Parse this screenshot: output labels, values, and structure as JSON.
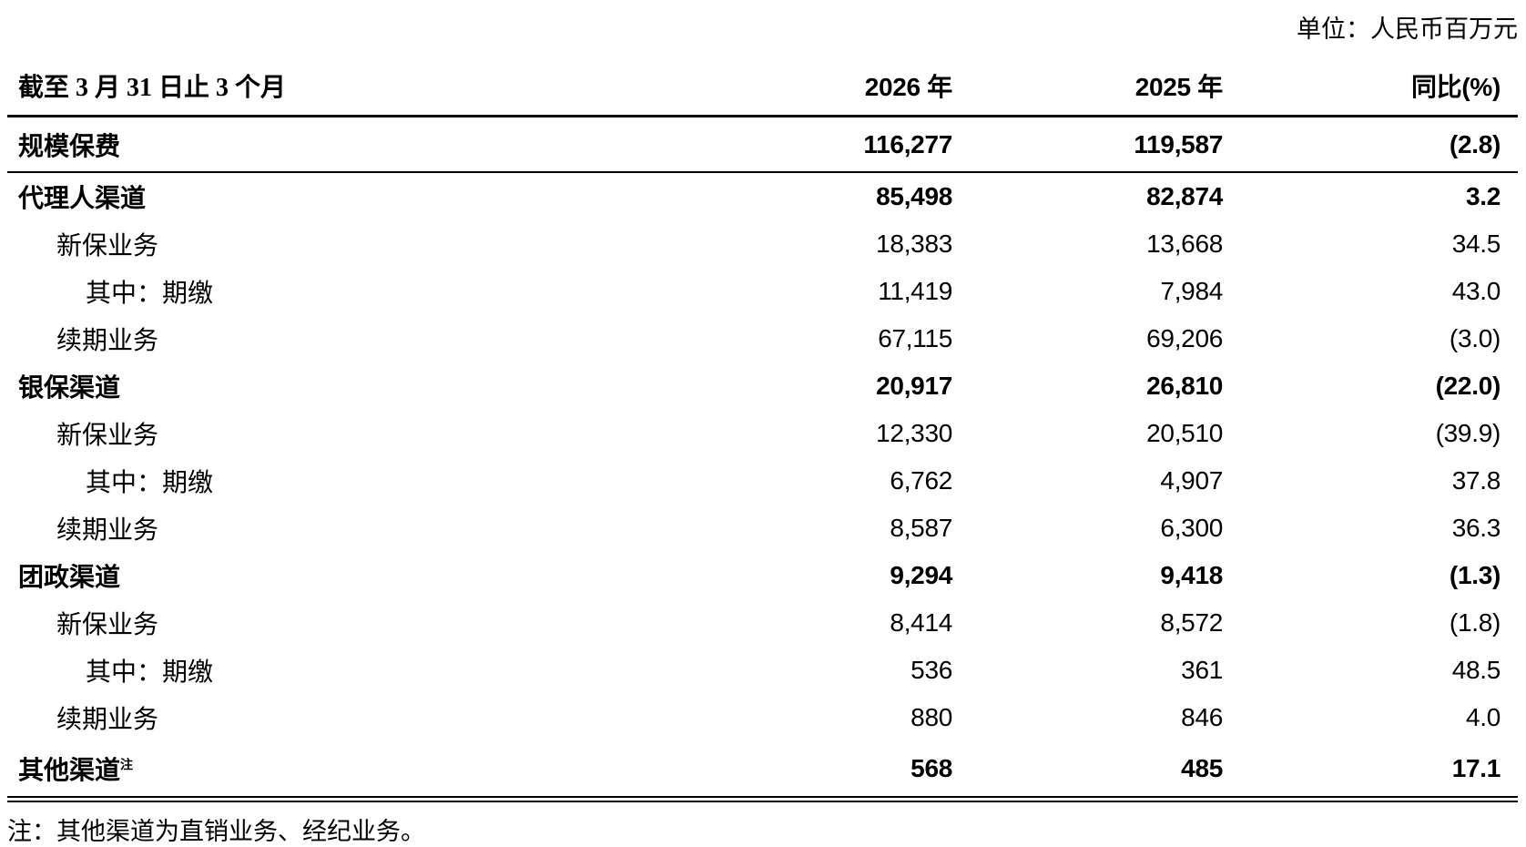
{
  "page": {
    "background": "#ffffff",
    "text_color": "#000000"
  },
  "unit_label": "单位：人民币百万元",
  "table": {
    "columns": {
      "period": "截至 3 月 31 日止 3 个月",
      "y2026": "2026 年",
      "y2025": "2025 年",
      "yoy": "同比(%)"
    },
    "rows": [
      {
        "label": "规模保费",
        "sup": "",
        "indent": 0,
        "bold": true,
        "y2026": "116,277",
        "y2025": "119,587",
        "yoy": "(2.8)"
      },
      {
        "label": "代理人渠道",
        "sup": "",
        "indent": 0,
        "bold": true,
        "y2026": "85,498",
        "y2025": "82,874",
        "yoy": "3.2"
      },
      {
        "label": "新保业务",
        "sup": "",
        "indent": 1,
        "bold": false,
        "y2026": "18,383",
        "y2025": "13,668",
        "yoy": "34.5"
      },
      {
        "label": "其中：期缴",
        "sup": "",
        "indent": 2,
        "bold": false,
        "y2026": "11,419",
        "y2025": "7,984",
        "yoy": "43.0"
      },
      {
        "label": "续期业务",
        "sup": "",
        "indent": 1,
        "bold": false,
        "y2026": "67,115",
        "y2025": "69,206",
        "yoy": "(3.0)"
      },
      {
        "label": "银保渠道",
        "sup": "",
        "indent": 0,
        "bold": true,
        "y2026": "20,917",
        "y2025": "26,810",
        "yoy": "(22.0)"
      },
      {
        "label": "新保业务",
        "sup": "",
        "indent": 1,
        "bold": false,
        "y2026": "12,330",
        "y2025": "20,510",
        "yoy": "(39.9)"
      },
      {
        "label": "其中：期缴",
        "sup": "",
        "indent": 2,
        "bold": false,
        "y2026": "6,762",
        "y2025": "4,907",
        "yoy": "37.8"
      },
      {
        "label": "续期业务",
        "sup": "",
        "indent": 1,
        "bold": false,
        "y2026": "8,587",
        "y2025": "6,300",
        "yoy": "36.3"
      },
      {
        "label": "团政渠道",
        "sup": "",
        "indent": 0,
        "bold": true,
        "y2026": "9,294",
        "y2025": "9,418",
        "yoy": "(1.3)"
      },
      {
        "label": "新保业务",
        "sup": "",
        "indent": 1,
        "bold": false,
        "y2026": "8,414",
        "y2025": "8,572",
        "yoy": "(1.8)"
      },
      {
        "label": "其中：期缴",
        "sup": "",
        "indent": 2,
        "bold": false,
        "y2026": "536",
        "y2025": "361",
        "yoy": "48.5"
      },
      {
        "label": "续期业务",
        "sup": "",
        "indent": 1,
        "bold": false,
        "y2026": "880",
        "y2025": "846",
        "yoy": "4.0"
      },
      {
        "label": "其他渠道",
        "sup": "注",
        "indent": 0,
        "bold": true,
        "y2026": "568",
        "y2025": "485",
        "yoy": "17.1"
      }
    ]
  },
  "footnote": "注：其他渠道为直销业务、经纪业务。"
}
